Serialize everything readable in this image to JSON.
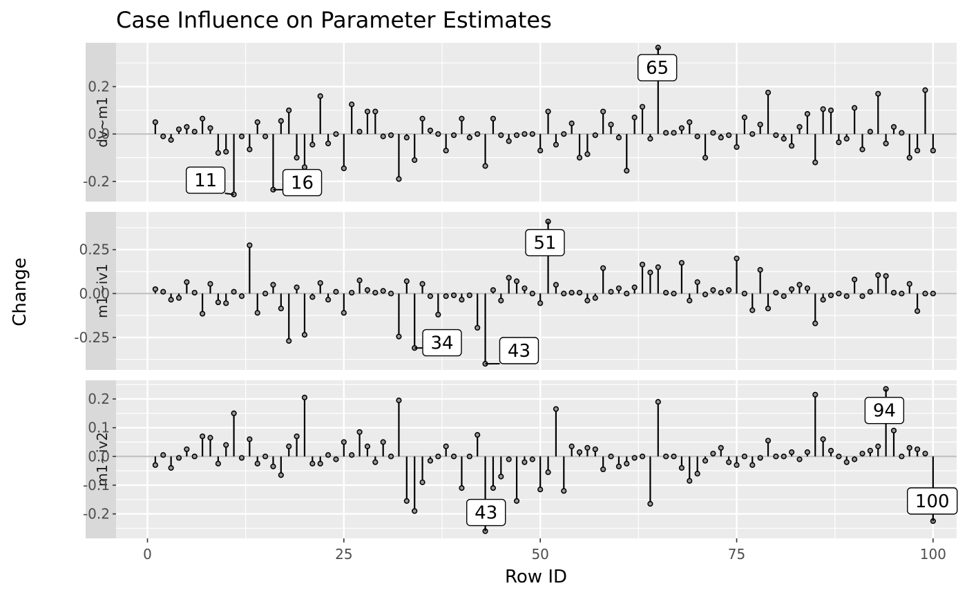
{
  "chart_data": {
    "type": "lollipop",
    "title": "Case Influence on Parameter Estimates",
    "xlabel": "Row ID",
    "ylabel": "Change",
    "xlim": [
      -4,
      103
    ],
    "x_ticks": [
      0,
      25,
      50,
      75,
      100
    ],
    "panels": [
      {
        "name": "dv~m1",
        "ylim": [
          -0.285,
          0.385
        ],
        "y_ticks": [
          -0.2,
          0.0,
          0.2
        ],
        "y_tick_labels": [
          "-0.2",
          "0.0",
          "0.2"
        ],
        "values": [
          0.05,
          -0.01,
          -0.025,
          0.02,
          0.03,
          0.01,
          0.065,
          0.025,
          -0.08,
          -0.075,
          -0.255,
          -0.01,
          -0.065,
          0.05,
          -0.01,
          -0.235,
          0.055,
          0.1,
          -0.1,
          -0.14,
          -0.045,
          0.16,
          -0.04,
          0.0,
          -0.145,
          0.125,
          0.01,
          0.095,
          0.095,
          -0.01,
          -0.005,
          -0.19,
          -0.015,
          -0.11,
          0.065,
          0.015,
          0.0,
          -0.07,
          -0.005,
          0.065,
          -0.015,
          0.0,
          -0.135,
          0.065,
          -0.005,
          -0.03,
          -0.005,
          0.0,
          0.0,
          -0.07,
          0.095,
          -0.045,
          0.0,
          0.045,
          -0.1,
          -0.085,
          -0.005,
          0.095,
          0.04,
          -0.015,
          -0.155,
          0.07,
          0.115,
          -0.02,
          0.365,
          0.005,
          0.005,
          0.025,
          0.05,
          -0.01,
          -0.1,
          0.005,
          -0.015,
          -0.005,
          -0.055,
          0.07,
          0.0,
          0.04,
          0.175,
          -0.005,
          -0.02,
          -0.05,
          0.03,
          0.085,
          -0.12,
          0.105,
          0.1,
          -0.035,
          -0.02,
          0.11,
          -0.065,
          0.01,
          0.17,
          -0.04,
          0.03,
          0.005,
          -0.1,
          -0.07,
          0.185,
          -0.07
        ],
        "labels": [
          {
            "id": 11,
            "text": "11",
            "lx": 7.4,
            "ly": -0.195
          },
          {
            "id": 16,
            "text": "16",
            "lx": 19.7,
            "ly": -0.205
          },
          {
            "id": 65,
            "text": "65",
            "lx": 64.9,
            "ly": 0.28
          }
        ]
      },
      {
        "name": "m1~iv1",
        "ylim": [
          -0.435,
          0.465
        ],
        "y_ticks": [
          -0.25,
          0.0,
          0.25
        ],
        "y_tick_labels": [
          "-0.25",
          "0.00",
          "0.25"
        ],
        "values": [
          0.025,
          0.01,
          -0.035,
          -0.025,
          0.065,
          0.005,
          -0.115,
          0.055,
          -0.05,
          -0.055,
          0.01,
          -0.015,
          0.275,
          -0.11,
          0.0,
          0.05,
          -0.085,
          -0.27,
          0.035,
          -0.235,
          -0.02,
          0.06,
          -0.035,
          0.01,
          -0.11,
          0.005,
          0.075,
          0.02,
          0.005,
          0.015,
          0.0,
          -0.245,
          0.07,
          -0.31,
          0.055,
          -0.015,
          -0.12,
          -0.015,
          -0.01,
          -0.035,
          -0.01,
          -0.195,
          -0.4,
          0.02,
          -0.04,
          0.09,
          0.07,
          0.03,
          0.0,
          -0.055,
          0.41,
          0.05,
          0.0,
          0.005,
          0.005,
          -0.04,
          -0.025,
          0.145,
          0.01,
          0.03,
          0.0,
          0.035,
          0.165,
          0.12,
          0.15,
          0.005,
          0.0,
          0.175,
          -0.04,
          0.065,
          -0.005,
          0.02,
          0.005,
          0.02,
          0.2,
          0.0,
          -0.095,
          0.135,
          -0.085,
          0.005,
          -0.015,
          0.025,
          0.05,
          0.03,
          -0.17,
          -0.035,
          -0.01,
          0.0,
          -0.015,
          0.08,
          -0.015,
          0.01,
          0.105,
          0.1,
          0.005,
          0.0,
          0.055,
          -0.1,
          0.0,
          0.0
        ],
        "labels": [
          {
            "id": 34,
            "text": "34",
            "lx": 37.5,
            "ly": -0.28
          },
          {
            "id": 43,
            "text": "43",
            "lx": 47.3,
            "ly": -0.325
          },
          {
            "id": 51,
            "text": "51",
            "lx": 50.6,
            "ly": 0.29
          }
        ]
      },
      {
        "name": "m1~iv2",
        "ylim": [
          -0.285,
          0.265
        ],
        "y_ticks": [
          -0.2,
          -0.1,
          0.0,
          0.1,
          0.2
        ],
        "y_tick_labels": [
          "-0.2",
          "-0.1",
          "0.0",
          "0.1",
          "0.2"
        ],
        "values": [
          -0.03,
          0.005,
          -0.04,
          -0.005,
          0.025,
          0.0,
          0.07,
          0.065,
          -0.025,
          0.04,
          0.15,
          -0.005,
          0.06,
          -0.025,
          0.0,
          -0.035,
          -0.065,
          0.035,
          0.07,
          0.205,
          -0.025,
          -0.025,
          0.005,
          -0.01,
          0.05,
          0.005,
          0.085,
          0.035,
          -0.02,
          0.05,
          0.0,
          0.195,
          -0.155,
          -0.19,
          -0.09,
          -0.015,
          0.0,
          0.035,
          0.0,
          -0.11,
          0.0,
          0.075,
          -0.26,
          -0.11,
          -0.07,
          -0.01,
          -0.155,
          -0.02,
          -0.01,
          -0.115,
          -0.055,
          0.165,
          -0.12,
          0.035,
          0.015,
          0.03,
          0.025,
          -0.045,
          0.0,
          -0.035,
          -0.025,
          -0.005,
          0.0,
          -0.165,
          0.19,
          0.0,
          0.0,
          -0.04,
          -0.085,
          -0.06,
          -0.015,
          0.01,
          0.03,
          -0.02,
          -0.03,
          0.0,
          -0.03,
          -0.005,
          0.055,
          0.0,
          0.0,
          0.015,
          -0.01,
          0.015,
          0.215,
          0.06,
          0.02,
          0.0,
          -0.02,
          -0.01,
          0.01,
          0.02,
          0.035,
          0.235,
          0.09,
          0.0,
          0.03,
          0.025,
          0.01,
          -0.225
        ],
        "labels": [
          {
            "id": 43,
            "text": "43",
            "lx": 43.1,
            "ly": -0.195
          },
          {
            "id": 94,
            "text": "94",
            "lx": 93.8,
            "ly": 0.16
          },
          {
            "id": 100,
            "text": "100",
            "lx": 99.9,
            "ly": -0.155
          }
        ]
      }
    ],
    "grid": true,
    "legend": "none"
  }
}
